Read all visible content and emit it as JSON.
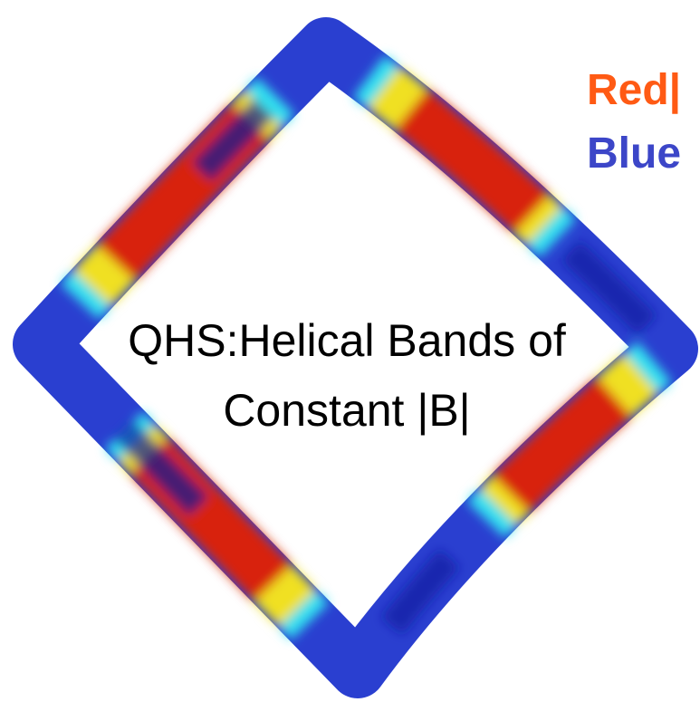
{
  "title": {
    "line1": "QHS:Helical Bands of",
    "line2": "Constant |B|"
  },
  "legend": {
    "red": "Red|",
    "blue": "Blue"
  }
}
